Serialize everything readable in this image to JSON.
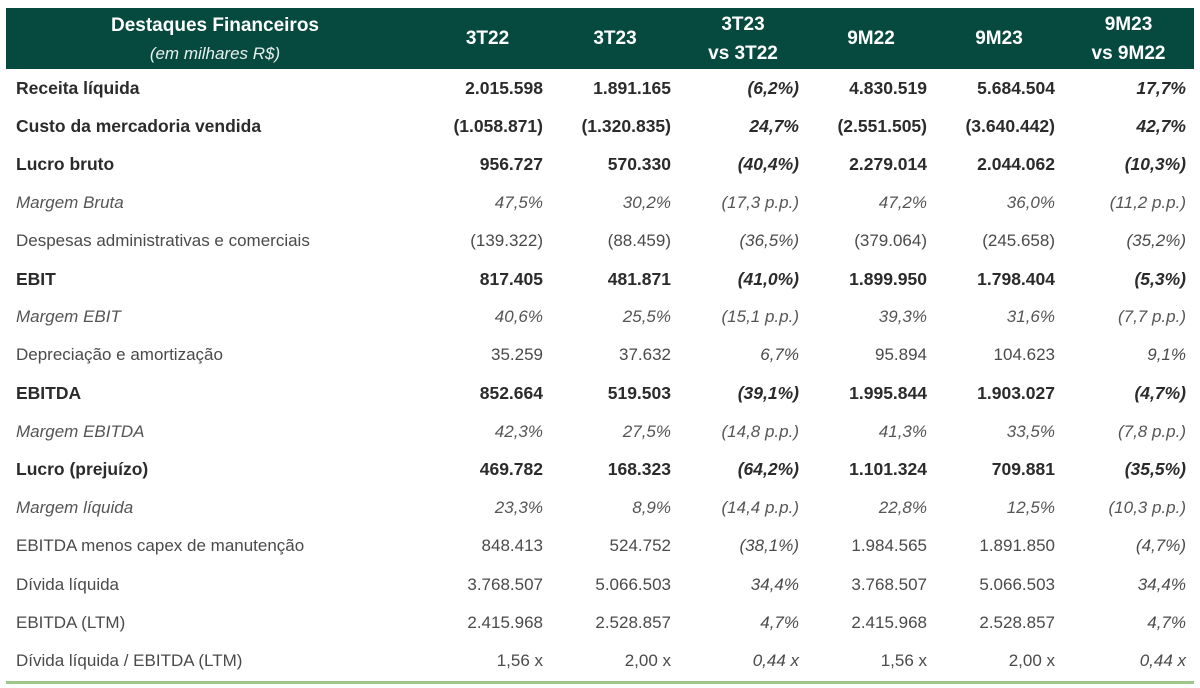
{
  "header": {
    "title": "Destaques Financeiros",
    "subtitle": "(em milhares R$)",
    "columns": [
      {
        "line1": "3T22",
        "line2": ""
      },
      {
        "line1": "3T23",
        "line2": ""
      },
      {
        "line1": "3T23",
        "line2": "vs 3T22"
      },
      {
        "line1": "9M22",
        "line2": ""
      },
      {
        "line1": "9M23",
        "line2": ""
      },
      {
        "line1": "9M23",
        "line2": "vs 9M22"
      }
    ]
  },
  "rows": [
    {
      "style": "bold",
      "label": "Receita líquida",
      "values": [
        "2.015.598",
        "1.891.165",
        "(6,2%)",
        "4.830.519",
        "5.684.504",
        "17,7%"
      ]
    },
    {
      "style": "bold",
      "label": "Custo da mercadoria vendida",
      "values": [
        "(1.058.871)",
        "(1.320.835)",
        "24,7%",
        "(2.551.505)",
        "(3.640.442)",
        "42,7%"
      ]
    },
    {
      "style": "bold",
      "label": "Lucro bruto",
      "values": [
        "956.727",
        "570.330",
        "(40,4%)",
        "2.279.014",
        "2.044.062",
        "(10,3%)"
      ]
    },
    {
      "style": "italic",
      "label": "Margem Bruta",
      "values": [
        "47,5%",
        "30,2%",
        "(17,3 p.p.)",
        "47,2%",
        "36,0%",
        "(11,2 p.p.)"
      ]
    },
    {
      "style": "normal",
      "label": "Despesas administrativas e comerciais",
      "values": [
        "(139.322)",
        "(88.459)",
        "(36,5%)",
        "(379.064)",
        "(245.658)",
        "(35,2%)"
      ]
    },
    {
      "style": "bold",
      "label": "EBIT",
      "values": [
        "817.405",
        "481.871",
        "(41,0%)",
        "1.899.950",
        "1.798.404",
        "(5,3%)"
      ]
    },
    {
      "style": "italic",
      "label": "Margem EBIT",
      "values": [
        "40,6%",
        "25,5%",
        "(15,1 p.p.)",
        "39,3%",
        "31,6%",
        "(7,7 p.p.)"
      ]
    },
    {
      "style": "normal",
      "label": "Depreciação e amortização",
      "values": [
        "35.259",
        "37.632",
        "6,7%",
        "95.894",
        "104.623",
        "9,1%"
      ]
    },
    {
      "style": "bold",
      "label": "EBITDA",
      "values": [
        "852.664",
        "519.503",
        "(39,1%)",
        "1.995.844",
        "1.903.027",
        "(4,7%)"
      ]
    },
    {
      "style": "italic",
      "label": "Margem EBITDA",
      "values": [
        "42,3%",
        "27,5%",
        "(14,8 p.p.)",
        "41,3%",
        "33,5%",
        "(7,8 p.p.)"
      ]
    },
    {
      "style": "bold",
      "label": "Lucro (prejuízo)",
      "values": [
        "469.782",
        "168.323",
        "(64,2%)",
        "1.101.324",
        "709.881",
        "(35,5%)"
      ]
    },
    {
      "style": "italic",
      "label": "Margem líquida",
      "values": [
        "23,3%",
        "8,9%",
        "(14,4 p.p.)",
        "22,8%",
        "12,5%",
        "(10,3 p.p.)"
      ]
    },
    {
      "style": "normal",
      "label": "EBITDA menos capex de manutenção",
      "values": [
        "848.413",
        "524.752",
        "(38,1%)",
        "1.984.565",
        "1.891.850",
        "(4,7%)"
      ]
    },
    {
      "style": "normal",
      "label": "Dívida líquida",
      "values": [
        "3.768.507",
        "5.066.503",
        "34,4%",
        "3.768.507",
        "5.066.503",
        "34,4%"
      ]
    },
    {
      "style": "normal",
      "label": "EBITDA (LTM)",
      "values": [
        "2.415.968",
        "2.528.857",
        "4,7%",
        "2.415.968",
        "2.528.857",
        "4,7%"
      ]
    },
    {
      "style": "normal",
      "label": "Dívida líquida / EBITDA (LTM)",
      "values": [
        "1,56 x",
        "2,00 x",
        "0,44 x",
        "1,56 x",
        "2,00 x",
        "0,44 x"
      ]
    }
  ],
  "colors": {
    "header_bg": "#064a3f",
    "bottom_rule": "#9cc98b"
  }
}
